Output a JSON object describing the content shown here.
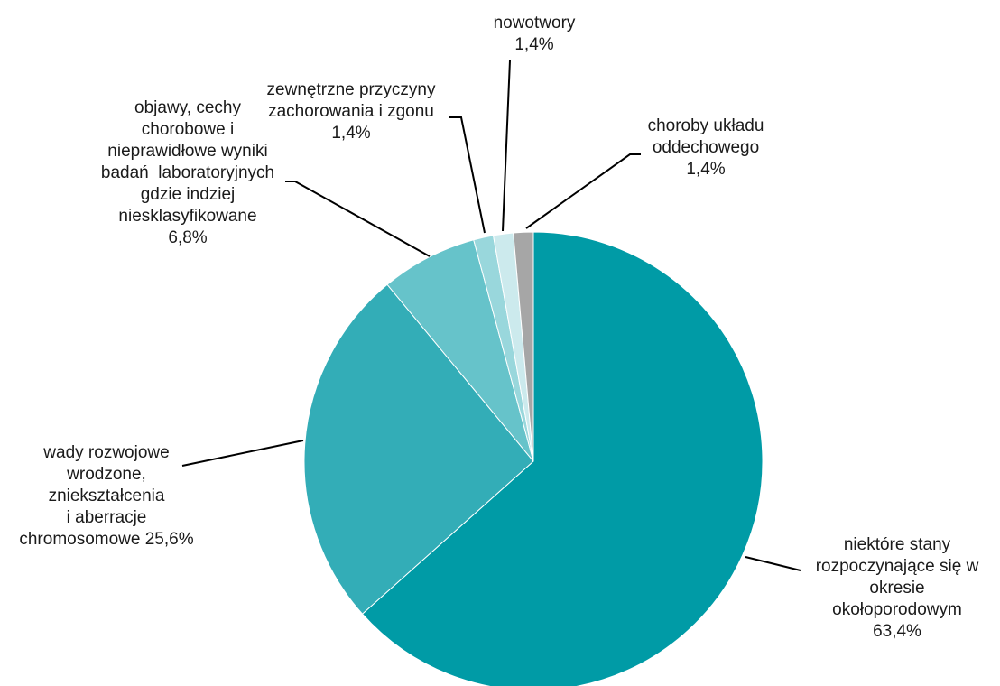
{
  "chart_data": {
    "type": "pie",
    "title": "",
    "slices": [
      {
        "label": "niektóre stany rozpoczynające się w okresie okołoporodowym 63,4%",
        "label_lines": [
          "niektóre stany",
          "rozpoczynające się w",
          "okresie",
          "okołoporodowym",
          "63,4%"
        ],
        "value": 63.4,
        "color": "#009ba6"
      },
      {
        "label": "wady rozwojowe wrodzone, zniekształcenia i aberracje chromosomowe 25,6%",
        "label_lines": [
          "wady rozwojowe",
          "wrodzone,",
          "zniekształcenia",
          "i aberracje",
          "chromosomowe 25,6%"
        ],
        "value": 25.6,
        "color": "#33adb7"
      },
      {
        "label": "objawy, cechy chorobowe i nieprawidłowe wyniki badań laboratoryjnych gdzie indziej niesklasyfikowane 6,8%",
        "label_lines": [
          "objawy, cechy",
          "chorobowe i",
          "nieprawidłowe wyniki",
          "badań  laboratoryjnych",
          "gdzie indziej",
          "niesklasyfikowane",
          "6,8%"
        ],
        "value": 6.8,
        "color": "#66c3ca"
      },
      {
        "label": "zewnętrzne przyczyny zachorowania i zgonu 1,4%",
        "label_lines": [
          "zewnętrzne przyczyny",
          "zachorowania i zgonu",
          "1,4%"
        ],
        "value": 1.4,
        "color": "#99d7dc"
      },
      {
        "label": "nowotwory 1,4%",
        "label_lines": [
          "nowotwory",
          "1,4%"
        ],
        "value": 1.4,
        "color": "#cceaed"
      },
      {
        "label": "choroby układu oddechowego 1,4%",
        "label_lines": [
          "choroby układu",
          "oddechowego",
          "1,4%"
        ],
        "value": 1.4,
        "color": "#a6a6a6"
      }
    ],
    "legend": "none"
  }
}
